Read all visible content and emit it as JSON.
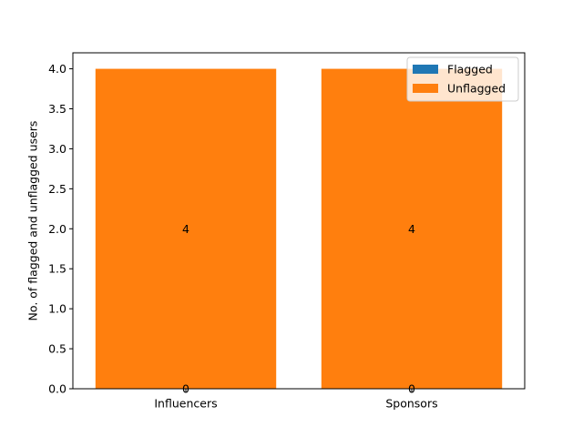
{
  "chart_data": {
    "type": "bar",
    "stacked": true,
    "title": "",
    "xlabel": "",
    "ylabel": "No. of flagged and unflagged users",
    "categories": [
      "Influencers",
      "Sponsors"
    ],
    "series": [
      {
        "name": "Flagged",
        "values": [
          0,
          0
        ],
        "color": "#1f77b4"
      },
      {
        "name": "Unflagged",
        "values": [
          4,
          4
        ],
        "color": "#ff7f0e"
      }
    ],
    "ylim": [
      0,
      4.2
    ],
    "yticks": [
      "0.0",
      "0.5",
      "1.0",
      "1.5",
      "2.0",
      "2.5",
      "3.0",
      "3.5",
      "4.0"
    ],
    "data_labels": [
      {
        "category": "Influencers",
        "series": "Flagged",
        "text": "0"
      },
      {
        "category": "Sponsors",
        "series": "Flagged",
        "text": "0"
      },
      {
        "category": "Influencers",
        "series": "Unflagged",
        "text": "4"
      },
      {
        "category": "Sponsors",
        "series": "Unflagged",
        "text": "4"
      }
    ],
    "grid": false,
    "legend": {
      "placement": "top-right",
      "entries": [
        "Flagged",
        "Unflagged"
      ]
    }
  }
}
